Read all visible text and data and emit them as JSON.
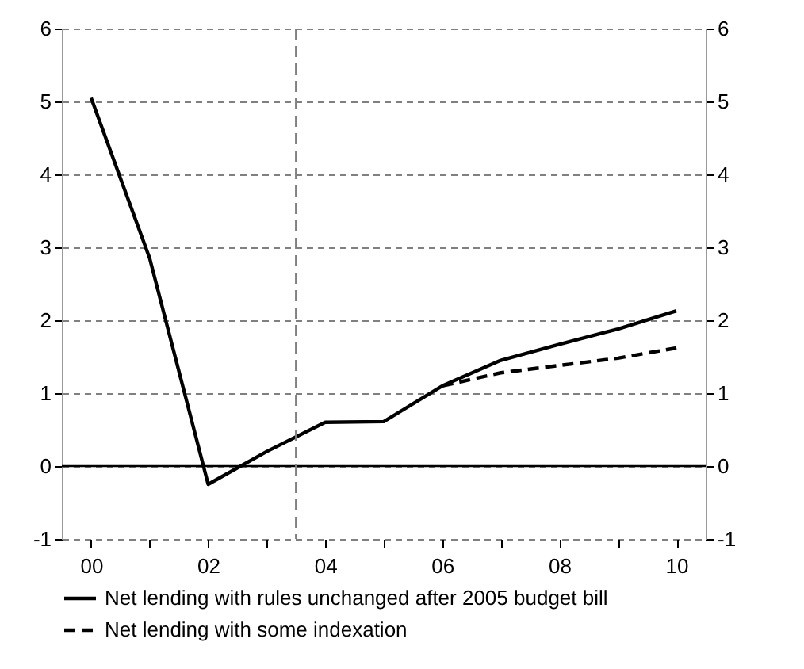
{
  "chart_data": {
    "type": "line",
    "x": [
      2000,
      2001,
      2002,
      2003,
      2004,
      2005,
      2006,
      2007,
      2008,
      2009,
      2010
    ],
    "series": [
      {
        "name": "Net lending with rules unchanged after 2005 budget bill",
        "color": "#000000",
        "line_style": "solid",
        "values": [
          5.05,
          2.85,
          -0.25,
          0.2,
          0.6,
          0.61,
          1.1,
          1.45,
          1.67,
          1.88,
          2.13
        ]
      },
      {
        "name": "Net lending with some indexation",
        "color": "#000000",
        "line_style": "dashed",
        "values": [
          null,
          null,
          null,
          null,
          null,
          null,
          1.1,
          1.28,
          1.38,
          1.48,
          1.62
        ]
      }
    ],
    "xlim": [
      1999.5,
      2010.5
    ],
    "xticks": [
      {
        "value": 2000,
        "label": "00"
      },
      {
        "value": 2001,
        "label": null
      },
      {
        "value": 2002,
        "label": "02"
      },
      {
        "value": 2003,
        "label": null
      },
      {
        "value": 2004,
        "label": "04"
      },
      {
        "value": 2005,
        "label": null
      },
      {
        "value": 2006,
        "label": "06"
      },
      {
        "value": 2007,
        "label": null
      },
      {
        "value": 2008,
        "label": "08"
      },
      {
        "value": 2009,
        "label": null
      },
      {
        "value": 2010,
        "label": "10"
      }
    ],
    "ylim": [
      -1,
      6
    ],
    "yticks": [
      -1,
      0,
      1,
      2,
      3,
      4,
      5,
      6
    ],
    "y2lim": [
      -1,
      6
    ],
    "y2ticks": [
      -1,
      0,
      1,
      2,
      3,
      4,
      5,
      6
    ],
    "ref_lines": [
      {
        "axis": "y",
        "value": 0,
        "color": "#000000",
        "line_style": "solid"
      },
      {
        "axis": "x",
        "value": 2003.5,
        "color": "#808080",
        "line_style": "dashed"
      }
    ],
    "grid": "y",
    "legend": "bottom",
    "marker": "none"
  }
}
